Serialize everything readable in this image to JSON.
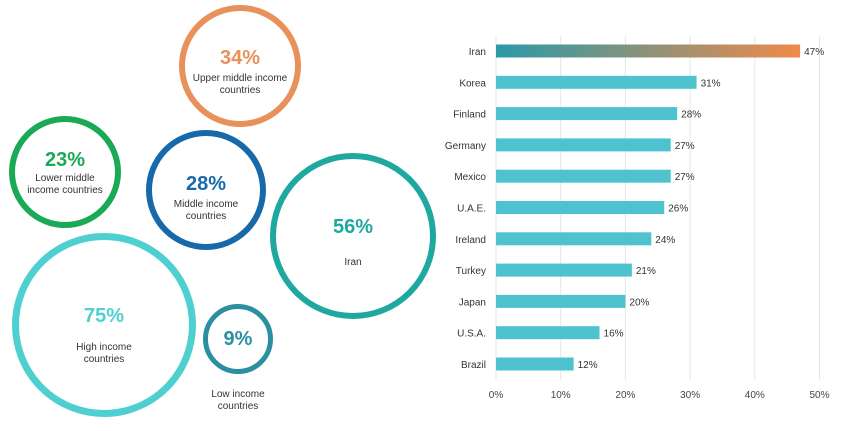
{
  "bubbles": {
    "upper_middle": {
      "pct": "34%",
      "label": "Upper middle income\ncountries",
      "color": "#e8915a",
      "value": 34
    },
    "lower_middle": {
      "pct": "23%",
      "label": "Lower middle\nincome countries",
      "color": "#1aaa55",
      "value": 23
    },
    "middle": {
      "pct": "28%",
      "label": "Middle income\ncountries",
      "color": "#1769aa",
      "value": 28
    },
    "iran": {
      "pct": "56%",
      "label": "Iran",
      "color": "#1fa8a0",
      "value": 56
    },
    "high": {
      "pct": "75%",
      "label": "High income\ncountries",
      "color": "#4ecfd0",
      "value": 75
    },
    "low": {
      "pct": "9%",
      "label": "Low income\ncountries",
      "color": "#2b8fa0",
      "value": 9
    }
  },
  "chart_data": {
    "type": "bar",
    "orientation": "horizontal",
    "categories": [
      "Iran",
      "Korea",
      "Finland",
      "Germany",
      "Mexico",
      "U.A.E.",
      "Ireland",
      "Turkey",
      "Japan",
      "U.S.A.",
      "Brazil"
    ],
    "values": [
      47,
      31,
      28,
      27,
      27,
      26,
      24,
      21,
      20,
      16,
      12
    ],
    "value_labels": [
      "47%",
      "31%",
      "28%",
      "27%",
      "27%",
      "26%",
      "24%",
      "21%",
      "20%",
      "16%",
      "12%"
    ],
    "xlim": [
      0,
      50
    ],
    "xticks": [
      0,
      10,
      20,
      30,
      40,
      50
    ],
    "xtick_labels": [
      "0%",
      "10%",
      "20%",
      "30%",
      "40%",
      "50%"
    ],
    "grid": true,
    "bar_color": "#4ec3cf",
    "highlight_gradient": [
      "#2a9aa8",
      "#f08a4b"
    ]
  }
}
